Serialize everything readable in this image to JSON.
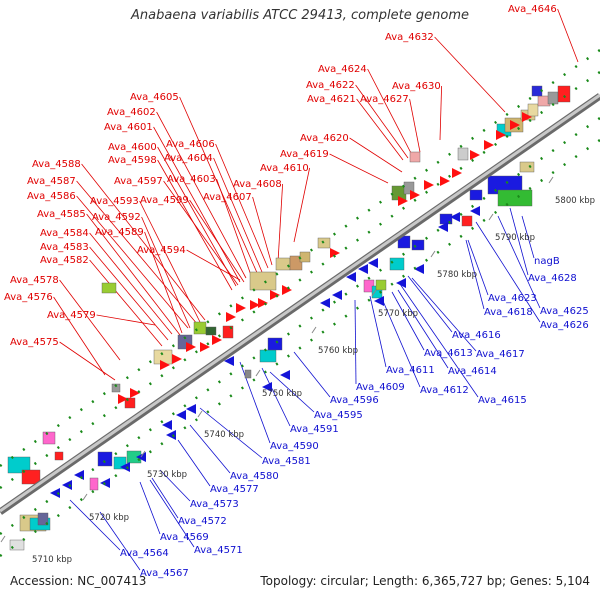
{
  "title": "Anabaena variabilis ATCC 29413, complete genome",
  "footer": {
    "accession": "Accession: NC_007413",
    "summary": "Topology: circular; Length: 6,365,727 bp; Genes: 5,104"
  },
  "colors": {
    "backbone": "#9a9a9a",
    "forward_label": "#e00000",
    "reverse_label": "#1010d0",
    "forward_gene": "#ff1010",
    "reverse_gene": "#1414d8",
    "tick": "#1a8a1a"
  },
  "ticks": [
    {
      "kbp": 5710,
      "label": "5710 kbp"
    },
    {
      "kbp": 5720,
      "label": "5720 kbp"
    },
    {
      "kbp": 5730,
      "label": "5730 kbp"
    },
    {
      "kbp": 5740,
      "label": "5740 kbp"
    },
    {
      "kbp": 5750,
      "label": "5750 kbp"
    },
    {
      "kbp": 5760,
      "label": "5760 kbp"
    },
    {
      "kbp": 5770,
      "label": "5770 kbp"
    },
    {
      "kbp": 5780,
      "label": "5780 kbp"
    },
    {
      "kbp": 5790,
      "label": "5790 kbp"
    },
    {
      "kbp": 5800,
      "label": "5800 kbp"
    }
  ],
  "forward_labels": [
    "Ava_4575",
    "Ava_4579",
    "Ava_4576",
    "Ava_4578",
    "Ava_4582",
    "Ava_4583",
    "Ava_4584",
    "Ava_4594",
    "Ava_4589",
    "Ava_4585",
    "Ava_4592",
    "Ava_4586",
    "Ava_4593",
    "Ava_4587",
    "Ava_4588",
    "Ava_4599",
    "Ava_4597",
    "Ava_4598",
    "Ava_4600",
    "Ava_4601",
    "Ava_4602",
    "Ava_4605",
    "Ava_4603",
    "Ava_4604",
    "Ava_4606",
    "Ava_4607",
    "Ava_4608",
    "Ava_4610",
    "Ava_4619",
    "Ava_4620",
    "Ava_4621",
    "Ava_4622",
    "Ava_4624",
    "Ava_4627",
    "Ava_4630",
    "Ava_4632",
    "Ava_4646"
  ],
  "reverse_labels": [
    "Ava_4567",
    "Ava_4564",
    "Ava_4571",
    "Ava_4569",
    "Ava_4572",
    "Ava_4573",
    "Ava_4577",
    "Ava_4580",
    "Ava_4581",
    "Ava_4590",
    "Ava_4591",
    "Ava_4595",
    "Ava_4596",
    "Ava_4609",
    "Ava_4611",
    "Ava_4612",
    "Ava_4614",
    "Ava_4615",
    "Ava_4613",
    "Ava_4617",
    "Ava_4616",
    "Ava_4618",
    "Ava_4623",
    "Ava_4626",
    "Ava_4625",
    "Ava_4628",
    "nagB"
  ]
}
